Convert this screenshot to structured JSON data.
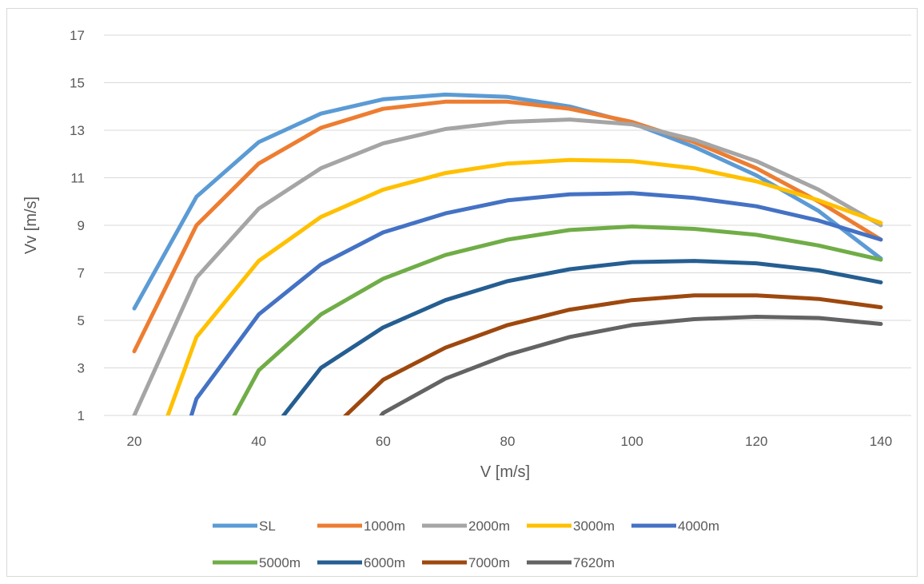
{
  "chart_data": {
    "type": "line",
    "title": "",
    "xlabel": "V [m/s]",
    "ylabel": "Vv [m/s]",
    "xlim": [
      15,
      145
    ],
    "ylim": [
      1,
      17
    ],
    "x_ticks": [
      "20",
      "40",
      "60",
      "80",
      "100",
      "120",
      "140"
    ],
    "y_ticks": [
      "1",
      "3",
      "5",
      "7",
      "9",
      "11",
      "13",
      "15",
      "17"
    ],
    "grid": "horizontal",
    "legend_position": "bottom",
    "series": [
      {
        "name": "SL",
        "color": "#5b9bd5",
        "x": [
          20,
          30,
          40,
          50,
          60,
          70,
          80,
          90,
          100,
          110,
          120,
          130,
          140
        ],
        "y": [
          5.5,
          10.2,
          12.5,
          13.7,
          14.3,
          14.5,
          14.4,
          14.0,
          13.3,
          12.3,
          11.1,
          9.6,
          7.6
        ]
      },
      {
        "name": "1000m",
        "color": "#ed7d31",
        "x": [
          20,
          30,
          40,
          50,
          60,
          70,
          80,
          90,
          100,
          110,
          120,
          130,
          140
        ],
        "y": [
          3.7,
          9.0,
          11.6,
          13.1,
          13.9,
          14.2,
          14.2,
          13.9,
          13.35,
          12.5,
          11.4,
          10.0,
          8.4
        ]
      },
      {
        "name": "2000m",
        "color": "#a5a5a5",
        "x": [
          20,
          30,
          40,
          50,
          60,
          70,
          80,
          90,
          100,
          110,
          120,
          130,
          140
        ],
        "y": [
          1.0,
          6.8,
          9.7,
          11.4,
          12.45,
          13.05,
          13.35,
          13.45,
          13.25,
          12.6,
          11.7,
          10.5,
          9.0
        ]
      },
      {
        "name": "3000m",
        "color": "#ffc000",
        "x": [
          24,
          30,
          40,
          50,
          60,
          70,
          80,
          90,
          100,
          110,
          120,
          130,
          140
        ],
        "y": [
          0.0,
          4.3,
          7.5,
          9.35,
          10.5,
          11.2,
          11.6,
          11.75,
          11.7,
          11.4,
          10.85,
          10.05,
          9.1
        ]
      },
      {
        "name": "4000m",
        "color": "#4472c4",
        "x": [
          28,
          30,
          40,
          50,
          60,
          70,
          80,
          90,
          100,
          110,
          120,
          130,
          140
        ],
        "y": [
          0.0,
          1.7,
          5.25,
          7.35,
          8.7,
          9.5,
          10.05,
          10.3,
          10.35,
          10.15,
          9.8,
          9.2,
          8.4
        ]
      },
      {
        "name": "5000m",
        "color": "#70ad47",
        "x": [
          34,
          40,
          50,
          60,
          70,
          80,
          90,
          100,
          110,
          120,
          130,
          140
        ],
        "y": [
          0.0,
          2.9,
          5.25,
          6.75,
          7.75,
          8.4,
          8.8,
          8.95,
          8.85,
          8.6,
          8.15,
          7.55
        ]
      },
      {
        "name": "6000m",
        "color": "#255e91",
        "x": [
          41,
          50,
          60,
          70,
          80,
          90,
          100,
          110,
          120,
          130,
          140
        ],
        "y": [
          0.0,
          3.0,
          4.7,
          5.85,
          6.65,
          7.15,
          7.45,
          7.5,
          7.4,
          7.1,
          6.6
        ]
      },
      {
        "name": "7000m",
        "color": "#9e480e",
        "x": [
          50,
          60,
          70,
          80,
          90,
          100,
          110,
          120,
          130,
          140
        ],
        "y": [
          0.0,
          2.5,
          3.85,
          4.8,
          5.45,
          5.85,
          6.05,
          6.05,
          5.9,
          5.55
        ]
      },
      {
        "name": "7620m",
        "color": "#636363",
        "x": [
          57,
          60,
          70,
          80,
          90,
          100,
          110,
          120,
          130,
          140
        ],
        "y": [
          0.0,
          1.1,
          2.55,
          3.55,
          4.3,
          4.8,
          5.05,
          5.15,
          5.1,
          4.85
        ]
      }
    ]
  }
}
